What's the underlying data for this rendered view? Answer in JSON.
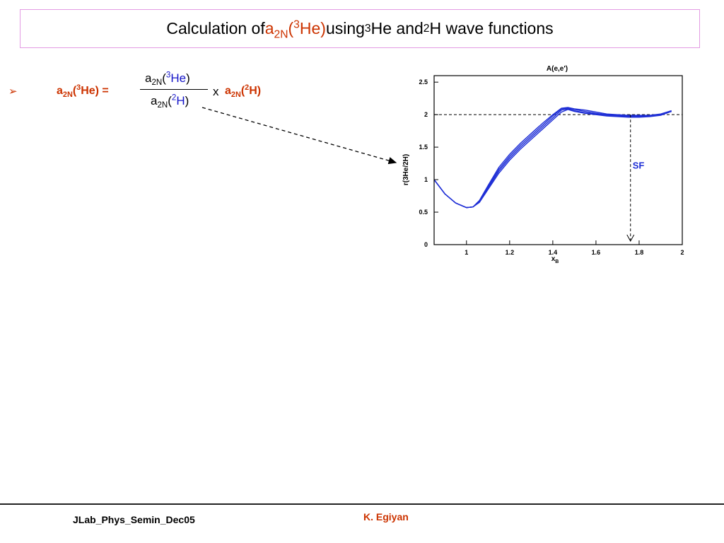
{
  "title": {
    "prefix": "Calculation of ",
    "a": "a",
    "sub_2n": "2N",
    "paren_open": "(",
    "sup3": "3",
    "he_close": "He)",
    "mid": " using ",
    "he_tail": "He and ",
    "sup2": "2",
    "h_tail": "H wave functions"
  },
  "bullet": "➢",
  "formula": {
    "left_a": "a",
    "left_sub": "2N",
    "left_rest_open": "(",
    "left_sup": "3",
    "left_rest_close": "He) =",
    "num_a": "a",
    "num_sub": "2N",
    "num_open": "(",
    "num_sup": "3",
    "num_el": "He",
    "num_close": ")",
    "den_a": "a",
    "den_sub": "2N",
    "den_open": "(",
    "den_sup": "2",
    "den_el": "H",
    "den_close": ")",
    "times": "x",
    "right_a": "a",
    "right_sub": "2N",
    "right_open": "(",
    "right_sup": "2",
    "right_el": "H)"
  },
  "chart_data": {
    "type": "line",
    "title": "A(e,e')",
    "xlabel": "x",
    "xlabel_sub": "B",
    "ylabel": "r(3He/2H)",
    "xlim": [
      0.85,
      2.0
    ],
    "ylim": [
      0,
      2.6
    ],
    "xticks": [
      "1",
      "1.2",
      "1.4",
      "1.6",
      "1.8",
      "2"
    ],
    "yticks": [
      "0",
      "0.5",
      "1",
      "1.5",
      "2",
      "2.5"
    ],
    "reference_line_y": 2,
    "annotation": {
      "text": "SF",
      "x": 1.76
    },
    "series": [
      {
        "x": [
          0.85,
          0.9,
          0.95,
          1.0,
          1.03,
          1.06,
          1.1,
          1.15,
          1.2,
          1.25,
          1.3,
          1.35,
          1.4,
          1.44,
          1.47,
          1.5,
          1.55,
          1.6,
          1.65,
          1.7,
          1.75,
          1.8,
          1.85,
          1.9,
          1.95
        ],
        "values": [
          1.0,
          0.78,
          0.64,
          0.57,
          0.58,
          0.65,
          0.85,
          1.1,
          1.3,
          1.47,
          1.62,
          1.77,
          1.92,
          2.04,
          2.08,
          2.05,
          2.02,
          2.0,
          1.98,
          1.97,
          1.96,
          1.96,
          1.97,
          1.99,
          2.05
        ]
      },
      {
        "x": [
          0.85,
          0.9,
          0.95,
          1.0,
          1.03,
          1.06,
          1.1,
          1.15,
          1.2,
          1.25,
          1.3,
          1.35,
          1.4,
          1.44,
          1.47,
          1.5,
          1.55,
          1.6,
          1.65,
          1.7,
          1.75,
          1.8,
          1.85,
          1.9,
          1.95
        ],
        "values": [
          1.0,
          0.78,
          0.64,
          0.57,
          0.58,
          0.66,
          0.87,
          1.13,
          1.33,
          1.5,
          1.65,
          1.8,
          1.95,
          2.07,
          2.09,
          2.06,
          2.03,
          2.01,
          1.99,
          1.98,
          1.97,
          1.97,
          1.98,
          2.0,
          2.05
        ]
      },
      {
        "x": [
          0.85,
          0.9,
          0.95,
          1.0,
          1.03,
          1.06,
          1.1,
          1.15,
          1.2,
          1.25,
          1.3,
          1.35,
          1.4,
          1.44,
          1.47,
          1.5,
          1.55,
          1.6,
          1.65,
          1.7,
          1.75,
          1.8,
          1.85,
          1.9,
          1.95
        ],
        "values": [
          1.0,
          0.78,
          0.64,
          0.57,
          0.58,
          0.67,
          0.89,
          1.16,
          1.36,
          1.53,
          1.68,
          1.83,
          1.98,
          2.09,
          2.1,
          2.08,
          2.05,
          2.02,
          2.0,
          1.99,
          1.98,
          1.98,
          1.98,
          2.0,
          2.06
        ]
      },
      {
        "x": [
          0.85,
          0.9,
          0.95,
          1.0,
          1.03,
          1.06,
          1.1,
          1.15,
          1.2,
          1.25,
          1.3,
          1.35,
          1.4,
          1.44,
          1.47,
          1.5,
          1.55,
          1.6,
          1.65,
          1.7,
          1.75,
          1.8,
          1.85,
          1.9,
          1.95
        ],
        "values": [
          1.0,
          0.78,
          0.64,
          0.57,
          0.58,
          0.68,
          0.91,
          1.19,
          1.39,
          1.56,
          1.71,
          1.86,
          2.0,
          2.1,
          2.11,
          2.09,
          2.07,
          2.04,
          2.01,
          2.0,
          1.99,
          1.99,
          1.99,
          2.01,
          2.06
        ]
      }
    ],
    "colors": {
      "curve": "#1f2fd6",
      "accent": "#cc3300"
    }
  },
  "footer": {
    "left": "JLab_Phys_Semin_Dec05",
    "right": "K. Egiyan"
  }
}
